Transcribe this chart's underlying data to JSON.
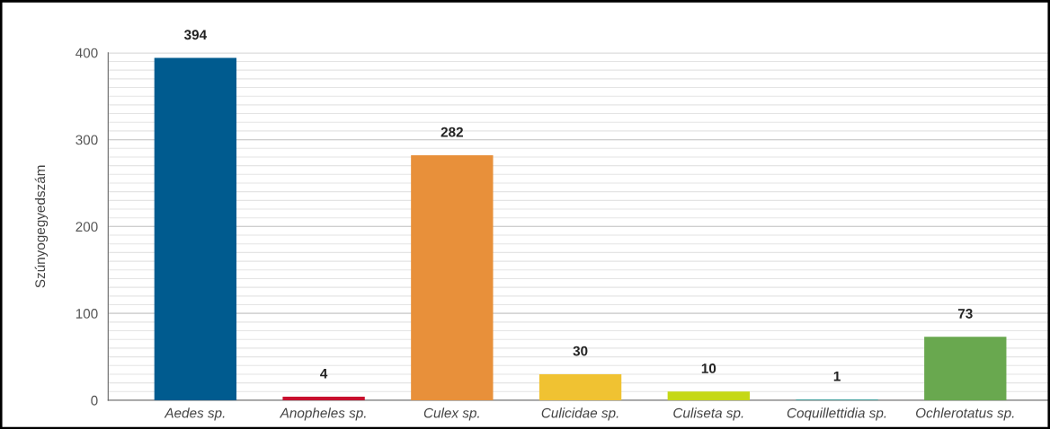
{
  "chart_data": {
    "type": "bar",
    "ylabel": "Szúnyogegyedszám",
    "categories": [
      "Aedes sp.",
      "Anopheles sp.",
      "Culex sp.",
      "Culicidae sp.",
      "Culiseta sp.",
      "Coquillettidia sp.",
      "Ochlerotatus sp."
    ],
    "values": [
      394,
      4,
      282,
      30,
      10,
      1,
      73
    ],
    "colors": [
      "#005b8f",
      "#c8102e",
      "#e8903a",
      "#f0c232",
      "#c5d816",
      "#4aa3a0",
      "#69a84f"
    ],
    "ylim": [
      0,
      400
    ],
    "yticks": [
      0,
      100,
      200,
      300,
      400
    ],
    "grid": "y",
    "data_labels": true
  }
}
